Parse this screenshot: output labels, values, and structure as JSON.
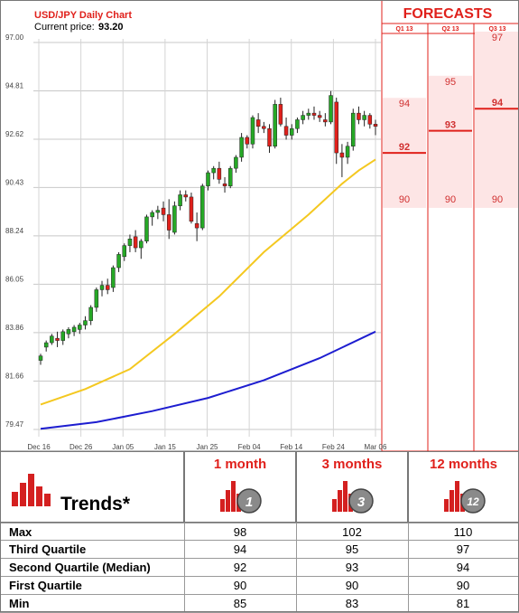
{
  "chart_data": {
    "type": "candlestick",
    "title": "USD/JPY Daily Chart",
    "current_price_label": "Current price:",
    "current_price": "93.20",
    "y_ticks": [
      "97.00",
      "94.81",
      "92.62",
      "90.43",
      "88.24",
      "86.05",
      "83.86",
      "81.66",
      "79.47"
    ],
    "ylim": [
      79.47,
      97.0
    ],
    "x_ticks": [
      "Dec 16",
      "Dec 26",
      "Jan 05",
      "Jan 15",
      "Jan 25",
      "Feb 04",
      "Feb 14",
      "Feb 24",
      "Mar 06"
    ],
    "candles": [
      {
        "o": 82.6,
        "h": 82.9,
        "l": 82.4,
        "c": 82.8
      },
      {
        "o": 83.2,
        "h": 83.5,
        "l": 83.0,
        "c": 83.4
      },
      {
        "o": 83.4,
        "h": 83.8,
        "l": 83.3,
        "c": 83.7
      },
      {
        "o": 83.6,
        "h": 83.9,
        "l": 83.2,
        "c": 83.5
      },
      {
        "o": 83.5,
        "h": 84.0,
        "l": 83.3,
        "c": 83.9
      },
      {
        "o": 83.8,
        "h": 84.1,
        "l": 83.6,
        "c": 84.0
      },
      {
        "o": 83.9,
        "h": 84.2,
        "l": 83.7,
        "c": 84.1
      },
      {
        "o": 84.0,
        "h": 84.3,
        "l": 83.8,
        "c": 84.2
      },
      {
        "o": 84.2,
        "h": 84.6,
        "l": 84.0,
        "c": 84.4
      },
      {
        "o": 84.4,
        "h": 85.1,
        "l": 84.2,
        "c": 85.0
      },
      {
        "o": 85.0,
        "h": 85.9,
        "l": 84.8,
        "c": 85.8
      },
      {
        "o": 85.8,
        "h": 86.2,
        "l": 85.5,
        "c": 86.0
      },
      {
        "o": 86.0,
        "h": 86.3,
        "l": 85.6,
        "c": 85.8
      },
      {
        "o": 85.9,
        "h": 86.9,
        "l": 85.7,
        "c": 86.8
      },
      {
        "o": 86.8,
        "h": 87.5,
        "l": 86.6,
        "c": 87.4
      },
      {
        "o": 87.3,
        "h": 87.9,
        "l": 87.1,
        "c": 87.8
      },
      {
        "o": 87.8,
        "h": 88.3,
        "l": 87.5,
        "c": 88.1
      },
      {
        "o": 88.2,
        "h": 88.5,
        "l": 87.5,
        "c": 87.7
      },
      {
        "o": 87.7,
        "h": 88.1,
        "l": 87.2,
        "c": 88.0
      },
      {
        "o": 88.0,
        "h": 89.2,
        "l": 87.9,
        "c": 89.1
      },
      {
        "o": 89.1,
        "h": 89.4,
        "l": 88.7,
        "c": 89.3
      },
      {
        "o": 89.3,
        "h": 89.6,
        "l": 89.0,
        "c": 89.4
      },
      {
        "o": 89.5,
        "h": 89.8,
        "l": 88.9,
        "c": 89.2
      },
      {
        "o": 89.2,
        "h": 89.9,
        "l": 88.1,
        "c": 88.5
      },
      {
        "o": 88.4,
        "h": 89.8,
        "l": 88.3,
        "c": 89.6
      },
      {
        "o": 89.6,
        "h": 90.3,
        "l": 89.4,
        "c": 90.1
      },
      {
        "o": 90.1,
        "h": 90.3,
        "l": 89.8,
        "c": 90.0
      },
      {
        "o": 90.0,
        "h": 90.2,
        "l": 88.8,
        "c": 88.9
      },
      {
        "o": 88.8,
        "h": 89.3,
        "l": 88.0,
        "c": 88.6
      },
      {
        "o": 88.6,
        "h": 90.6,
        "l": 88.5,
        "c": 90.5
      },
      {
        "o": 90.5,
        "h": 91.2,
        "l": 90.3,
        "c": 91.1
      },
      {
        "o": 91.1,
        "h": 91.4,
        "l": 90.8,
        "c": 91.3
      },
      {
        "o": 91.3,
        "h": 91.6,
        "l": 90.6,
        "c": 90.8
      },
      {
        "o": 90.6,
        "h": 90.9,
        "l": 90.2,
        "c": 90.5
      },
      {
        "o": 90.5,
        "h": 91.4,
        "l": 90.4,
        "c": 91.3
      },
      {
        "o": 91.3,
        "h": 91.9,
        "l": 91.1,
        "c": 91.8
      },
      {
        "o": 91.8,
        "h": 92.9,
        "l": 91.6,
        "c": 92.7
      },
      {
        "o": 92.7,
        "h": 92.8,
        "l": 92.2,
        "c": 92.4
      },
      {
        "o": 92.4,
        "h": 93.7,
        "l": 92.2,
        "c": 93.6
      },
      {
        "o": 93.5,
        "h": 93.8,
        "l": 92.9,
        "c": 93.2
      },
      {
        "o": 93.2,
        "h": 93.4,
        "l": 92.9,
        "c": 93.1
      },
      {
        "o": 93.1,
        "h": 93.3,
        "l": 92.0,
        "c": 92.3
      },
      {
        "o": 92.3,
        "h": 94.4,
        "l": 92.2,
        "c": 94.2
      },
      {
        "o": 94.2,
        "h": 94.5,
        "l": 93.2,
        "c": 93.3
      },
      {
        "o": 93.2,
        "h": 93.6,
        "l": 92.6,
        "c": 92.8
      },
      {
        "o": 92.8,
        "h": 93.3,
        "l": 92.6,
        "c": 93.1
      },
      {
        "o": 93.1,
        "h": 93.6,
        "l": 92.9,
        "c": 93.5
      },
      {
        "o": 93.5,
        "h": 93.9,
        "l": 93.3,
        "c": 93.7
      },
      {
        "o": 93.7,
        "h": 94.0,
        "l": 93.5,
        "c": 93.8
      },
      {
        "o": 93.8,
        "h": 94.1,
        "l": 93.5,
        "c": 93.7
      },
      {
        "o": 93.7,
        "h": 93.9,
        "l": 93.4,
        "c": 93.6
      },
      {
        "o": 93.5,
        "h": 93.8,
        "l": 93.2,
        "c": 93.4
      },
      {
        "o": 93.4,
        "h": 94.8,
        "l": 93.3,
        "c": 94.6
      },
      {
        "o": 94.3,
        "h": 94.5,
        "l": 91.5,
        "c": 92.0
      },
      {
        "o": 92.0,
        "h": 92.4,
        "l": 90.9,
        "c": 91.8
      },
      {
        "o": 91.8,
        "h": 92.5,
        "l": 91.5,
        "c": 92.3
      },
      {
        "o": 92.3,
        "h": 94.0,
        "l": 92.1,
        "c": 93.8
      },
      {
        "o": 93.8,
        "h": 94.1,
        "l": 93.3,
        "c": 93.5
      },
      {
        "o": 93.5,
        "h": 93.9,
        "l": 93.2,
        "c": 93.7
      },
      {
        "o": 93.7,
        "h": 93.8,
        "l": 93.1,
        "c": 93.3
      },
      {
        "o": 93.3,
        "h": 93.5,
        "l": 92.8,
        "c": 93.2
      }
    ],
    "ma_yellow": [
      [
        0,
        80.6
      ],
      [
        8,
        81.3
      ],
      [
        16,
        82.2
      ],
      [
        24,
        83.8
      ],
      [
        32,
        85.5
      ],
      [
        40,
        87.5
      ],
      [
        48,
        89.2
      ],
      [
        54,
        90.6
      ],
      [
        57,
        91.2
      ],
      [
        60,
        91.7
      ]
    ],
    "ma_blue": [
      [
        0,
        79.5
      ],
      [
        10,
        79.8
      ],
      [
        20,
        80.3
      ],
      [
        30,
        80.9
      ],
      [
        40,
        81.7
      ],
      [
        50,
        82.7
      ],
      [
        60,
        83.9
      ]
    ],
    "colors": {
      "up": "#26a826",
      "down": "#e0201b",
      "ma_yellow": "#f4c820",
      "ma_blue": "#1d1dd0",
      "accent": "#e0201b",
      "forecast_bg": "#fde5e5"
    }
  },
  "forecasts": {
    "title": "FORECASTS",
    "quarters": [
      {
        "label": "Q1 13",
        "high": 94,
        "median": 92,
        "low": 90
      },
      {
        "label": "Q2 13",
        "high": 95,
        "median": 93,
        "low": 90
      },
      {
        "label": "Q3 13",
        "high": 97,
        "median": 94,
        "low": 90
      }
    ]
  },
  "trends": {
    "label": "Trends*",
    "periods": [
      {
        "title": "1 month",
        "badge": "1"
      },
      {
        "title": "3 months",
        "badge": "3"
      },
      {
        "title": "12 months",
        "badge": "12"
      }
    ],
    "rows": [
      {
        "label": "Max",
        "values": [
          "98",
          "102",
          "110"
        ]
      },
      {
        "label": "Third Quartile",
        "values": [
          "94",
          "95",
          "97"
        ]
      },
      {
        "label": "Second Quartile (Median)",
        "values": [
          "92",
          "93",
          "94"
        ]
      },
      {
        "label": "First Quartile",
        "values": [
          "90",
          "90",
          "90"
        ]
      },
      {
        "label": "Min",
        "values": [
          "85",
          "83",
          "81"
        ]
      }
    ]
  }
}
